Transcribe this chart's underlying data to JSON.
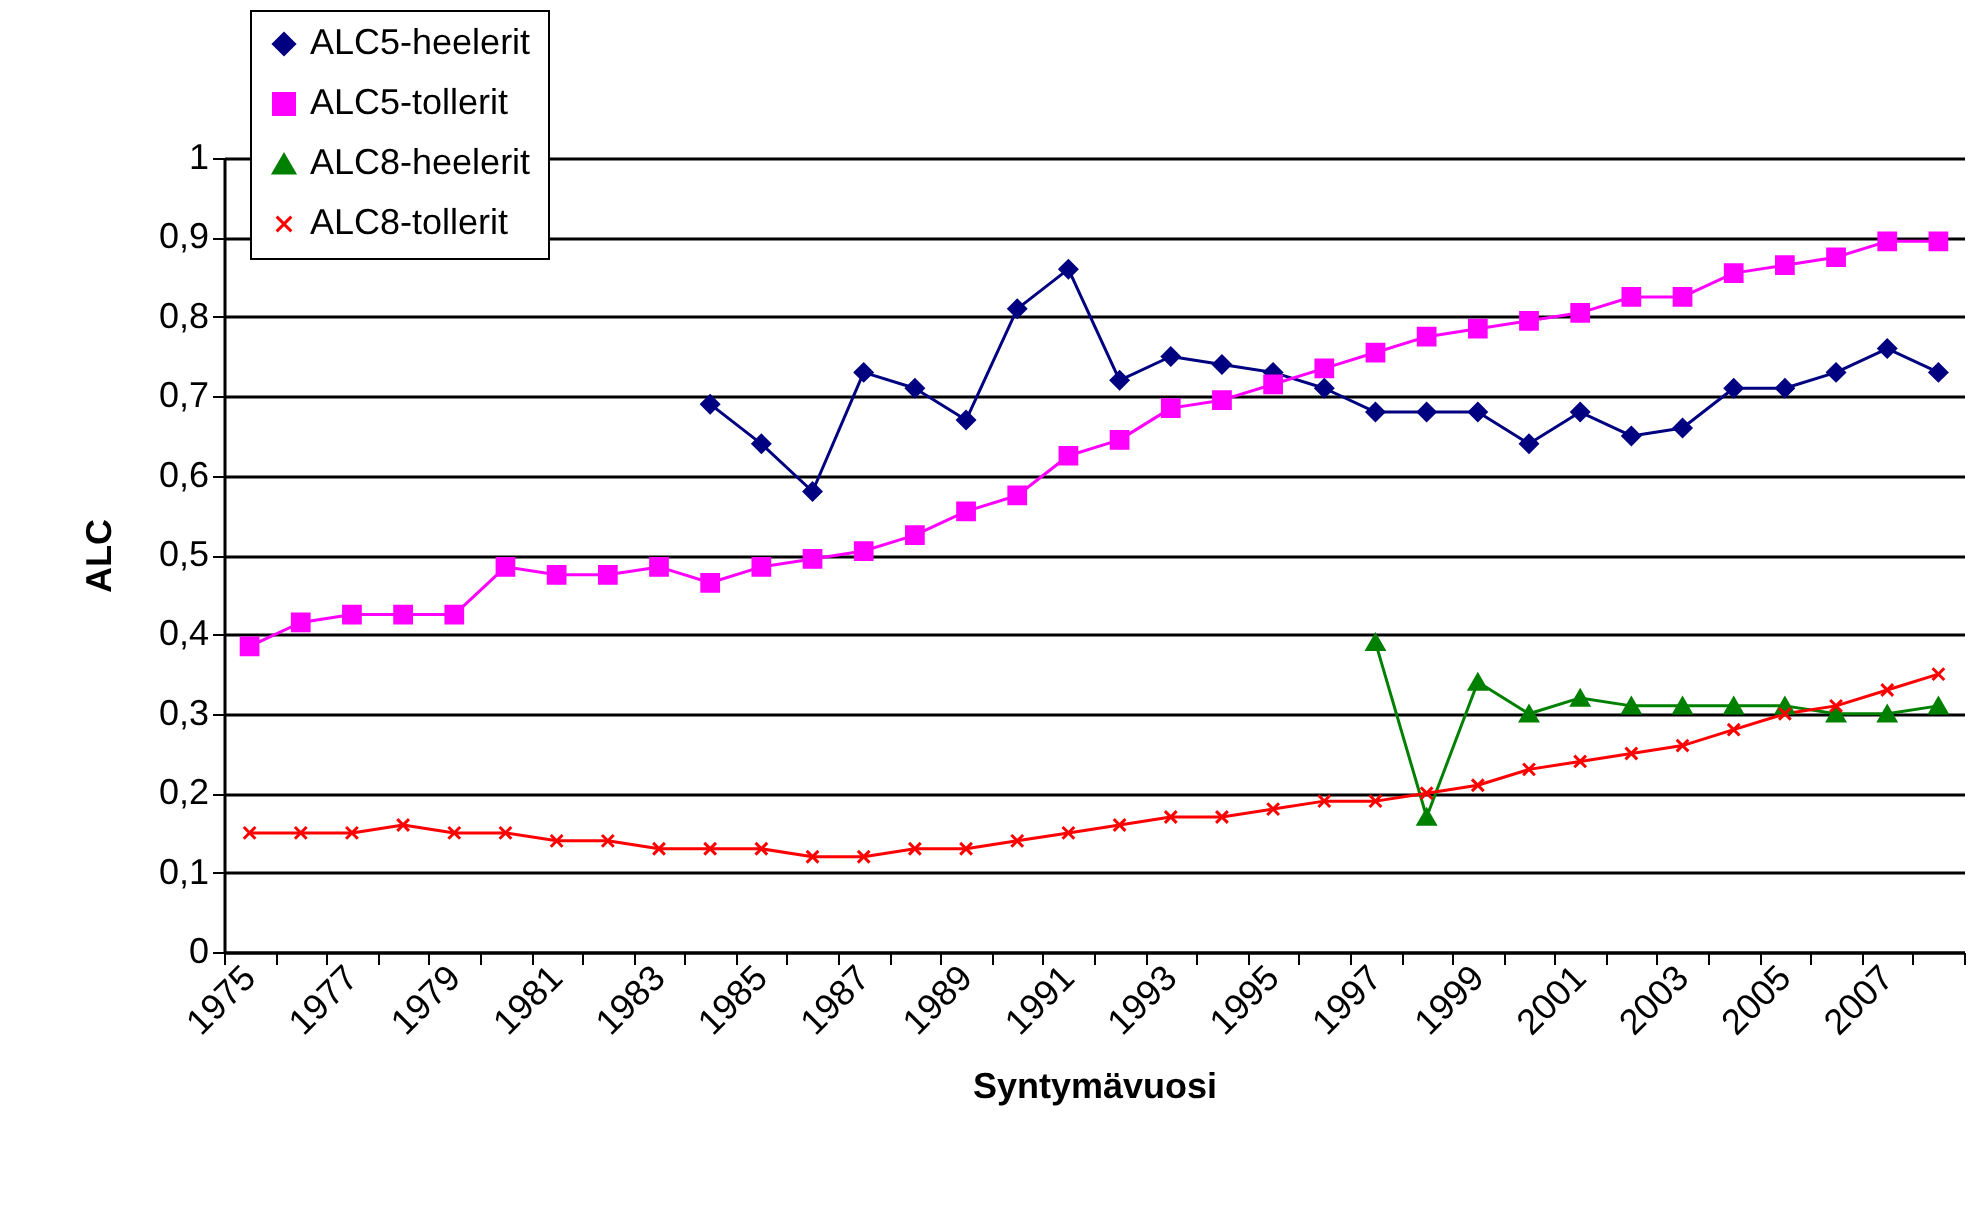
{
  "chart_data": {
    "type": "line",
    "xlabel": "Syntymävuosi",
    "ylabel": "ALC",
    "categories": [
      "1975",
      null,
      "1977",
      null,
      "1979",
      null,
      "1981",
      null,
      "1983",
      null,
      "1985",
      null,
      "1987",
      null,
      "1989",
      null,
      "1991",
      null,
      "1993",
      null,
      "1995",
      null,
      "1997",
      null,
      "1999",
      null,
      "2001",
      null,
      "2003",
      null,
      "2005",
      null,
      "2007",
      null
    ],
    "series": [
      {
        "name": "ALC5-heelerit",
        "color": "#000080",
        "marker": "diamond",
        "values": [
          null,
          null,
          null,
          null,
          null,
          null,
          null,
          null,
          null,
          0.69,
          0.64,
          0.58,
          0.73,
          0.71,
          0.67,
          0.81,
          0.86,
          0.72,
          0.75,
          0.74,
          0.73,
          0.71,
          0.68,
          0.68,
          0.68,
          0.64,
          0.68,
          0.65,
          0.66,
          0.71,
          0.71,
          0.73,
          0.76,
          0.73
        ]
      },
      {
        "name": "ALC5-tollerit",
        "color": "#ff00ff",
        "marker": "square",
        "values": [
          0.385,
          0.415,
          0.425,
          0.425,
          0.425,
          0.485,
          0.475,
          0.475,
          0.485,
          0.465,
          0.485,
          0.495,
          0.505,
          0.525,
          0.555,
          0.575,
          0.625,
          0.645,
          0.685,
          0.695,
          0.715,
          0.735,
          0.755,
          0.775,
          0.785,
          0.795,
          0.805,
          0.825,
          0.825,
          0.855,
          0.865,
          0.875,
          0.895,
          0.895
        ]
      },
      {
        "name": "ALC8-heelerit",
        "color": "#008000",
        "marker": "triangle",
        "values": [
          null,
          null,
          null,
          null,
          null,
          null,
          null,
          null,
          null,
          null,
          null,
          null,
          null,
          null,
          null,
          null,
          null,
          null,
          null,
          null,
          null,
          null,
          0.39,
          0.17,
          0.34,
          0.3,
          0.32,
          0.31,
          0.31,
          0.31,
          0.31,
          0.3,
          0.3,
          0.31
        ]
      },
      {
        "name": "ALC8-tollerit",
        "color": "#ff0000",
        "marker": "cross",
        "values": [
          0.15,
          0.15,
          0.15,
          0.16,
          0.15,
          0.15,
          0.14,
          0.14,
          0.13,
          0.13,
          0.13,
          0.12,
          0.12,
          0.13,
          0.13,
          0.14,
          0.15,
          0.16,
          0.17,
          0.17,
          0.18,
          0.19,
          0.19,
          0.2,
          0.21,
          0.23,
          0.24,
          0.25,
          0.26,
          0.28,
          0.3,
          0.31,
          0.33,
          0.35
        ]
      }
    ],
    "ylim": [
      0,
      1
    ],
    "yticks": [
      {
        "value": 0,
        "label": "0"
      },
      {
        "value": 0.1,
        "label": "0,1"
      },
      {
        "value": 0.2,
        "label": "0,2"
      },
      {
        "value": 0.3,
        "label": "0,3"
      },
      {
        "value": 0.4,
        "label": "0,4"
      },
      {
        "value": 0.5,
        "label": "0,5"
      },
      {
        "value": 0.6,
        "label": "0,6"
      },
      {
        "value": 0.7,
        "label": "0,7"
      },
      {
        "value": 0.8,
        "label": "0,8"
      },
      {
        "value": 0.9,
        "label": "0,9"
      },
      {
        "value": 1,
        "label": "1"
      }
    ],
    "grid": "y",
    "legend": "top left",
    "line_style": "solid"
  }
}
